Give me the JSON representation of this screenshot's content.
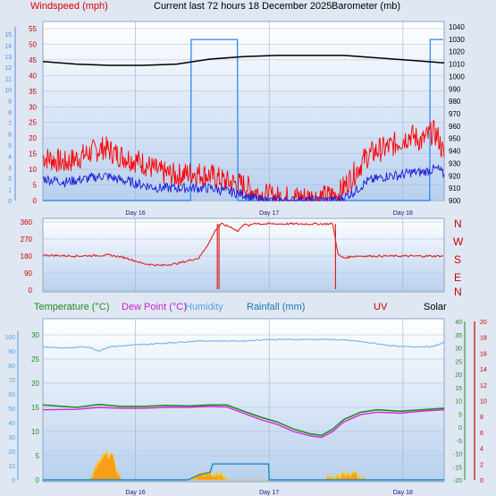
{
  "header": {
    "windspeed_label": "Windspeed (mph)",
    "title": "Current last 72 hours 18 December 2025",
    "barometer_label": "Barometer (mb)"
  },
  "middle": {
    "compass": [
      "N",
      "W",
      "S",
      "E",
      "N"
    ]
  },
  "bottom_legend": {
    "temperature": "Temperature (°C)",
    "dewpoint": "Dew Point (°C)",
    "humidity": "Humidity",
    "rainfall": "Rainfall (mm)",
    "uv": "UV",
    "solar": "Solar"
  },
  "x_ticks": [
    "Day 16",
    "Day 17",
    "Day 18"
  ],
  "colors": {
    "wind_gust": "#ff0000",
    "wind_avg": "#1a1ad8",
    "barometer": "#000000",
    "rain_blue": "#3d8ef0",
    "direction": "#dd2222",
    "temperature": "#228b22",
    "dewpoint": "#dd22dd",
    "humidity": "#78b8f0",
    "rainfall": "#1a8ac8",
    "solar": "#ff9900",
    "uv": "#ffcc00",
    "plot_bg_top": "#ffffff",
    "plot_bg_bottom": "#b8d0ee"
  },
  "chart_data": [
    {
      "type": "line",
      "title": "Current last 72 hours 18 December 2025",
      "xlabel": "",
      "ylabel": "Windspeed (mph)",
      "x_range_hours": [
        0,
        72
      ],
      "x_tick_hours": [
        16.6,
        40.6,
        64.6
      ],
      "x_tick_labels": [
        "Day 16",
        "Day 17",
        "Day 18"
      ],
      "y_left_ticks": [
        0,
        5,
        10,
        15,
        20,
        25,
        30,
        35,
        40,
        45,
        50,
        55
      ],
      "y_left2_ticks": [
        0,
        1,
        2,
        3,
        4,
        5,
        6,
        7,
        8,
        9,
        10,
        11,
        12,
        13,
        14,
        15
      ],
      "y_right_ticks": [
        900,
        910,
        920,
        930,
        940,
        950,
        960,
        970,
        980,
        990,
        1000,
        1010,
        1020,
        1030,
        1040
      ],
      "series": [
        {
          "name": "Windspeed (mph)",
          "axis": "left",
          "x": [
            0,
            4,
            8,
            11,
            13,
            18,
            21,
            24,
            27,
            30,
            33,
            36,
            39,
            42,
            45,
            48,
            50,
            53,
            56,
            58,
            60,
            62,
            64,
            66,
            68,
            70,
            71,
            72
          ],
          "values": [
            14,
            12,
            15,
            17,
            15,
            12,
            9,
            8,
            9,
            8,
            6,
            5,
            2,
            1,
            1,
            1,
            1,
            2,
            9,
            14,
            16,
            17,
            19,
            21,
            19,
            22,
            20,
            14
          ]
        },
        {
          "name": "Wind average",
          "axis": "left",
          "x": [
            0,
            4,
            8,
            11,
            13,
            18,
            21,
            24,
            27,
            30,
            33,
            36,
            39,
            42,
            45,
            48,
            50,
            53,
            56,
            58,
            60,
            62,
            64,
            66,
            68,
            70,
            71,
            72
          ],
          "values": [
            7,
            6,
            7,
            8,
            7,
            5,
            4,
            4,
            4,
            4,
            3,
            2,
            0,
            0,
            0,
            0,
            0,
            0,
            3,
            6,
            7,
            8,
            8,
            9,
            9,
            10,
            10,
            8
          ]
        },
        {
          "name": "Barometer (mb)",
          "axis": "right",
          "x": [
            0,
            6,
            12,
            18,
            24,
            30,
            36,
            42,
            48,
            54,
            60,
            66,
            72
          ],
          "values": [
            1012,
            1010,
            1009,
            1009,
            1010,
            1014,
            1016,
            1017,
            1017,
            1017,
            1015,
            1013,
            1011
          ]
        },
        {
          "name": "Rain",
          "axis": "left2",
          "x": [
            0,
            26.5,
            26.6,
            34.9,
            35.0,
            69.4,
            69.5,
            71.8
          ],
          "values": [
            0,
            0,
            14.5,
            14.5,
            0,
            0,
            14.5,
            14.5
          ]
        }
      ]
    },
    {
      "type": "line",
      "title": "",
      "ylabel": "",
      "y_ticks": [
        0,
        90,
        180,
        270,
        360
      ],
      "compass_labels": [
        "N",
        "W",
        "S",
        "E",
        "N"
      ],
      "series": [
        {
          "name": "Wind direction",
          "x": [
            0,
            6,
            12,
            15,
            18,
            21,
            24,
            28,
            30,
            31,
            32,
            33,
            34,
            35,
            36,
            37,
            38,
            39,
            42,
            46,
            52,
            53,
            54,
            56,
            60,
            66,
            72
          ],
          "values": [
            185,
            180,
            185,
            170,
            140,
            130,
            140,
            170,
            260,
            320,
            350,
            340,
            330,
            310,
            350,
            340,
            355,
            350,
            350,
            350,
            350,
            185,
            170,
            180,
            180,
            180,
            180
          ]
        }
      ]
    },
    {
      "type": "line",
      "title": "",
      "ylabel": "",
      "y_left_ticks": [
        0,
        5,
        10,
        15,
        20,
        25,
        30
      ],
      "y_left2_ticks": [
        0,
        10,
        20,
        30,
        40,
        50,
        60,
        70,
        80,
        90,
        100
      ],
      "y_right_green_ticks": [
        -20,
        -15,
        -10,
        -5,
        0,
        5,
        10,
        15,
        20,
        25,
        30,
        35,
        40
      ],
      "y_right_red_ticks": [
        0,
        2,
        4,
        6,
        8,
        10,
        12,
        14,
        16,
        18,
        20
      ],
      "series": [
        {
          "name": "Temperature (°C)",
          "axis": "left",
          "x": [
            0,
            6,
            10,
            14,
            18,
            22,
            26,
            30,
            33,
            36,
            39,
            42,
            45,
            48,
            50,
            52,
            54,
            57,
            60,
            64,
            68,
            72
          ],
          "values": [
            15.5,
            15,
            15.6,
            15.2,
            15.2,
            15.4,
            15.3,
            15.5,
            15.5,
            14.2,
            13,
            12,
            10.5,
            9.5,
            9.2,
            10.5,
            12.5,
            14,
            14.5,
            14.2,
            14.5,
            14.8
          ]
        },
        {
          "name": "Dew Point (°C)",
          "axis": "left",
          "x": [
            0,
            6,
            10,
            14,
            18,
            22,
            26,
            30,
            33,
            36,
            39,
            42,
            45,
            48,
            50,
            52,
            54,
            57,
            60,
            64,
            68,
            72
          ],
          "values": [
            14.5,
            14.6,
            15,
            14.8,
            14.8,
            15,
            15,
            15.2,
            15.1,
            13.8,
            12.5,
            11.5,
            10,
            9.1,
            8.8,
            10,
            12,
            13.5,
            14,
            13.8,
            14.2,
            14.5
          ]
        },
        {
          "name": "Humidity",
          "axis": "left2",
          "x": [
            0,
            4,
            8,
            10,
            12,
            16,
            20,
            24,
            28,
            32,
            36,
            40,
            44,
            48,
            52,
            56,
            60,
            64,
            68,
            70,
            72
          ],
          "values": [
            93,
            92,
            93,
            90,
            93,
            94,
            95,
            96,
            97,
            97,
            97,
            98,
            98,
            98,
            98,
            97,
            95,
            93,
            93,
            93,
            96
          ]
        },
        {
          "name": "Rainfall (mm)",
          "axis": "left",
          "x": [
            0,
            26,
            28,
            30,
            30.5,
            40.5,
            40.6,
            72
          ],
          "values": [
            0,
            0,
            1,
            1.6,
            3.3,
            3.3,
            0,
            0
          ]
        },
        {
          "name": "Solar",
          "axis": "left",
          "x": [
            0,
            8.5,
            9.5,
            10.5,
            11.2,
            11.8,
            12.4,
            13,
            14,
            26,
            27,
            28,
            29,
            31,
            32,
            33.5,
            50,
            52,
            54,
            56,
            57,
            58,
            72
          ],
          "values": [
            0,
            0,
            2.5,
            4.5,
            5.8,
            4.9,
            5.5,
            3,
            0,
            0,
            0.4,
            0.8,
            1.2,
            1.2,
            0.6,
            0,
            0,
            0.6,
            1.1,
            1.1,
            0.6,
            0,
            0
          ]
        }
      ]
    }
  ]
}
